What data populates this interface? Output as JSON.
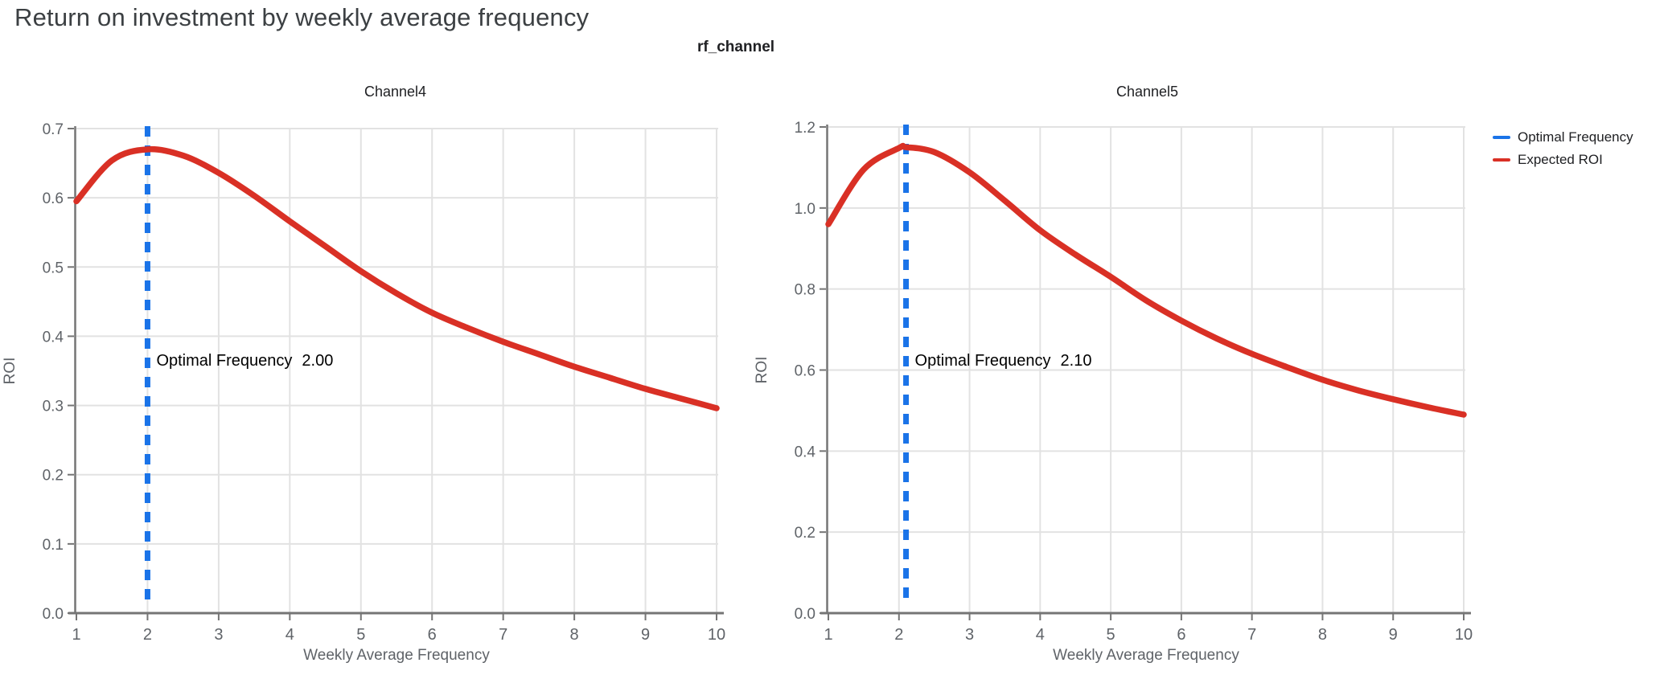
{
  "page_title": "Return on investment by weekly average frequency",
  "group_title": "rf_channel",
  "legend": {
    "items": [
      {
        "label": "Optimal Frequency",
        "color": "#1a73e8"
      },
      {
        "label": "Expected ROI",
        "color": "#d93025"
      }
    ]
  },
  "colors": {
    "expected_roi": "#d93025",
    "optimal_frequency": "#1a73e8",
    "gridline": "#e2e2e2",
    "axis": "#757575",
    "tick_label": "#5f6368",
    "annotation_text": "#000000"
  },
  "chart_data": [
    {
      "type": "line",
      "title": "Channel4",
      "xlabel": "Weekly Average Frequency",
      "ylabel": "ROI",
      "xlim": [
        1,
        10
      ],
      "ylim": [
        0,
        0.7
      ],
      "x_ticks": [
        1,
        2,
        3,
        4,
        5,
        6,
        7,
        8,
        9,
        10
      ],
      "x_tick_labels": [
        "1",
        "2",
        "3",
        "4",
        "5",
        "6",
        "7",
        "8",
        "9",
        "10"
      ],
      "y_ticks": [
        0,
        0.1,
        0.2,
        0.3,
        0.4,
        0.5,
        0.6,
        0.7
      ],
      "y_tick_labels": [
        "0.0",
        "0.1",
        "0.2",
        "0.3",
        "0.4",
        "0.5",
        "0.6",
        "0.7"
      ],
      "grid": true,
      "optimal_frequency": 2.0,
      "annotation": {
        "label": "Optimal Frequency",
        "value": "2.00"
      },
      "series": [
        {
          "name": "Expected ROI",
          "x": [
            1,
            1.5,
            2,
            2.5,
            3,
            3.5,
            4,
            4.5,
            5,
            5.5,
            6,
            6.5,
            7,
            7.5,
            8,
            8.5,
            9,
            9.5,
            10
          ],
          "y": [
            0.595,
            0.654,
            0.67,
            0.661,
            0.636,
            0.603,
            0.566,
            0.53,
            0.494,
            0.462,
            0.434,
            0.412,
            0.392,
            0.374,
            0.356,
            0.34,
            0.324,
            0.31,
            0.296
          ]
        }
      ]
    },
    {
      "type": "line",
      "title": "Channel5",
      "xlabel": "Weekly Average Frequency",
      "ylabel": "ROI",
      "xlim": [
        1,
        10
      ],
      "ylim": [
        0,
        1.2
      ],
      "x_ticks": [
        1,
        2,
        3,
        4,
        5,
        6,
        7,
        8,
        9,
        10
      ],
      "x_tick_labels": [
        "1",
        "2",
        "3",
        "4",
        "5",
        "6",
        "7",
        "8",
        "9",
        "10"
      ],
      "y_ticks": [
        0,
        0.2,
        0.4,
        0.6,
        0.8,
        1.0,
        1.2
      ],
      "y_tick_labels": [
        "0.0",
        "0.2",
        "0.4",
        "0.6",
        "0.8",
        "1.0",
        "1.2"
      ],
      "grid": true,
      "optimal_frequency": 2.1,
      "annotation": {
        "label": "Optimal Frequency",
        "value": "2.10"
      },
      "series": [
        {
          "name": "Expected ROI",
          "x": [
            1,
            1.5,
            2,
            2.1,
            2.5,
            3,
            3.5,
            4,
            4.5,
            5,
            5.5,
            6,
            6.5,
            7,
            7.5,
            8,
            8.5,
            9,
            9.5,
            10
          ],
          "y": [
            0.96,
            1.095,
            1.148,
            1.15,
            1.138,
            1.088,
            1.018,
            0.945,
            0.885,
            0.83,
            0.772,
            0.722,
            0.678,
            0.64,
            0.607,
            0.576,
            0.55,
            0.528,
            0.508,
            0.49
          ]
        }
      ]
    }
  ]
}
